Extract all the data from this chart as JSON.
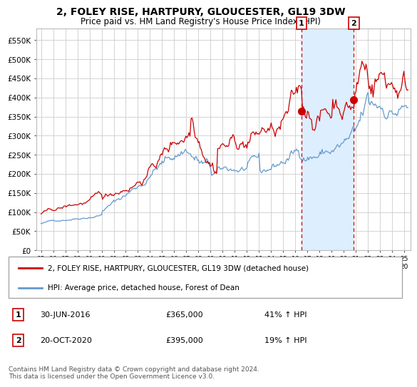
{
  "title": "2, FOLEY RISE, HARTPURY, GLOUCESTER, GL19 3DW",
  "subtitle": "Price paid vs. HM Land Registry's House Price Index (HPI)",
  "title_fontsize": 10,
  "subtitle_fontsize": 8.5,
  "background_color": "#ffffff",
  "plot_bg_color": "#ffffff",
  "grid_color": "#cccccc",
  "hpi_color": "#6699cc",
  "hpi_fill_color": "#ddeeff",
  "price_color": "#cc0000",
  "legend_label_price": "2, FOLEY RISE, HARTPURY, GLOUCESTER, GL19 3DW (detached house)",
  "legend_label_hpi": "HPI: Average price, detached house, Forest of Dean",
  "annotation1_label": "1",
  "annotation1_date": "30-JUN-2016",
  "annotation1_price": "£365,000",
  "annotation1_hpi": "41% ↑ HPI",
  "annotation2_label": "2",
  "annotation2_date": "20-OCT-2020",
  "annotation2_price": "£395,000",
  "annotation2_hpi": "19% ↑ HPI",
  "footer": "Contains HM Land Registry data © Crown copyright and database right 2024.\nThis data is licensed under the Open Government Licence v3.0.",
  "ylim": [
    0,
    580000
  ],
  "yticks": [
    0,
    50000,
    100000,
    150000,
    200000,
    250000,
    300000,
    350000,
    400000,
    450000,
    500000,
    550000
  ],
  "ytick_labels": [
    "£0",
    "£50K",
    "£100K",
    "£150K",
    "£200K",
    "£250K",
    "£300K",
    "£350K",
    "£400K",
    "£450K",
    "£500K",
    "£550K"
  ],
  "sale1_x": 2016.5,
  "sale1_y": 365000,
  "sale2_x": 2020.83,
  "sale2_y": 395000,
  "vline1_x": 2016.5,
  "vline2_x": 2020.83,
  "xlim_left": 1994.6,
  "xlim_right": 2025.5,
  "xtick_years": [
    1995,
    1996,
    1997,
    1998,
    1999,
    2000,
    2001,
    2002,
    2003,
    2004,
    2005,
    2006,
    2007,
    2008,
    2009,
    2010,
    2011,
    2012,
    2013,
    2014,
    2015,
    2016,
    2017,
    2018,
    2019,
    2020,
    2021,
    2022,
    2023,
    2024,
    2025
  ]
}
